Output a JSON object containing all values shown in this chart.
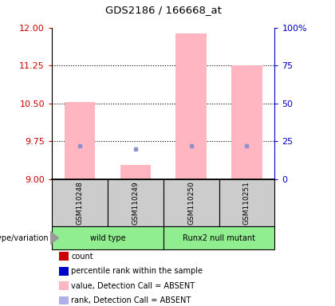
{
  "title": "GDS2186 / 166668_at",
  "samples": [
    "GSM110248",
    "GSM110249",
    "GSM110250",
    "GSM110251"
  ],
  "groups": [
    {
      "label": "wild type",
      "indices": [
        0,
        1
      ],
      "color": "#90ee90"
    },
    {
      "label": "Runx2 null mutant",
      "indices": [
        2,
        3
      ],
      "color": "#90ee90"
    }
  ],
  "ylim_left": [
    9,
    12
  ],
  "yticks_left": [
    9,
    9.75,
    10.5,
    11.25,
    12
  ],
  "ylim_right": [
    0,
    100
  ],
  "yticks_right": [
    0,
    25,
    50,
    75,
    100
  ],
  "pink_bar_values": [
    10.52,
    9.28,
    11.88,
    11.25
  ],
  "blue_marker_values": [
    9.65,
    9.6,
    9.65,
    9.65
  ],
  "bar_bottom": 9,
  "bar_width": 0.55,
  "pink_color": "#ffb6c1",
  "blue_color": "#9090cc",
  "red_color": "#cc0000",
  "left_axis_color": "#cc0000",
  "right_axis_color": "#0000cc",
  "group_label_text": "genotype/variation",
  "legend_items": [
    {
      "label": "count",
      "color": "#cc0000"
    },
    {
      "label": "percentile rank within the sample",
      "color": "#0000cc"
    },
    {
      "label": "value, Detection Call = ABSENT",
      "color": "#ffb6c1"
    },
    {
      "label": "rank, Detection Call = ABSENT",
      "color": "#b0b0e8"
    }
  ]
}
